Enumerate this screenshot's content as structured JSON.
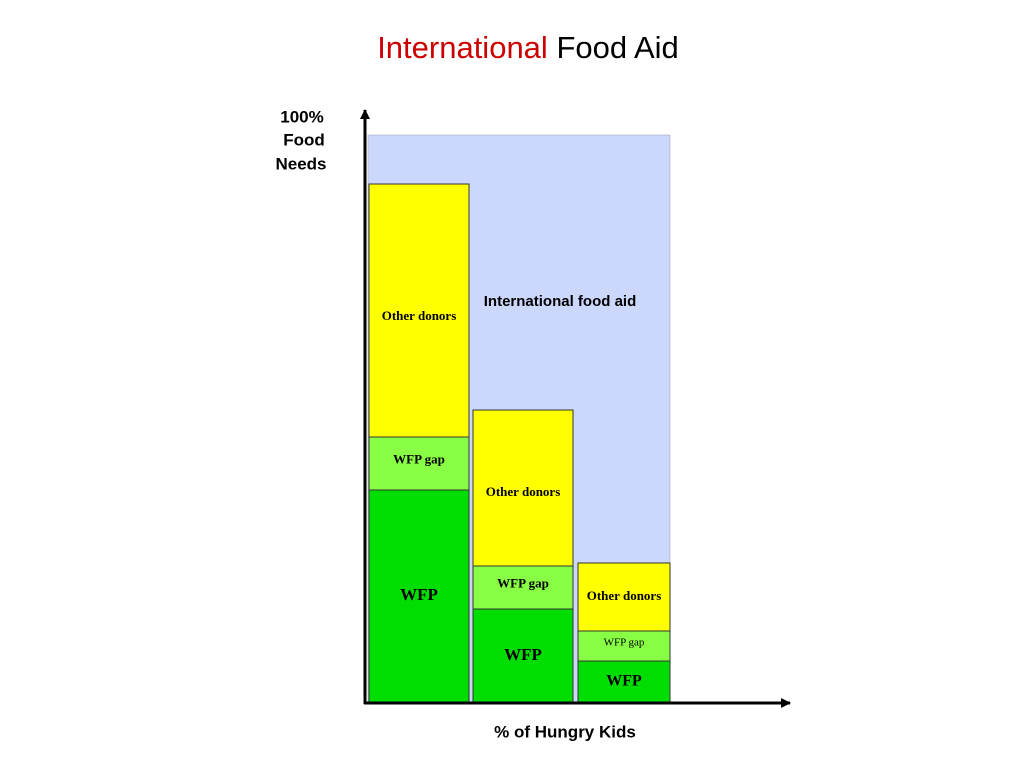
{
  "title": {
    "highlight": "International",
    "rest": "Food Aid"
  },
  "y_axis_label": [
    "100%",
    "Food",
    "Needs"
  ],
  "x_axis_label": "% of Hungry Kids",
  "region_label": "International food aid",
  "columns": [
    {
      "segments": [
        "WFP",
        "WFP gap",
        "Other donors"
      ]
    },
    {
      "segments": [
        "WFP",
        "WFP gap",
        "Other donors"
      ]
    },
    {
      "segments": [
        "WFP",
        "WFP gap",
        "Other donors"
      ]
    }
  ]
}
